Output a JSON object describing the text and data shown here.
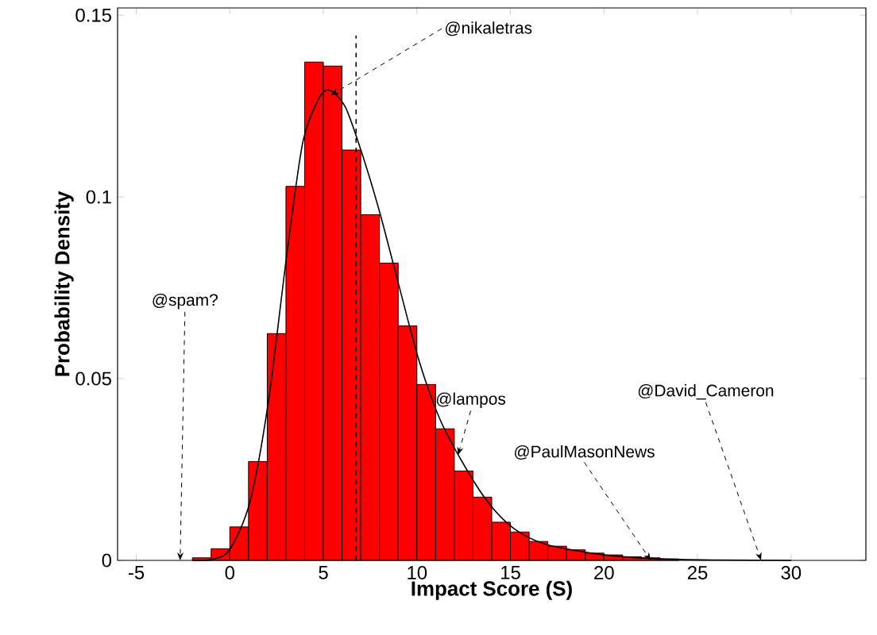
{
  "chart_data": {
    "type": "histogram",
    "xlabel": "Impact Score (S)",
    "ylabel": "Probability Density",
    "color": "#ff0000",
    "bins": [
      -2,
      -1,
      0,
      1,
      2,
      3,
      4,
      5,
      6,
      7,
      8,
      9,
      10,
      11,
      12,
      13,
      14,
      15,
      16,
      17,
      18,
      19,
      20,
      21,
      22,
      23,
      24
    ],
    "values": [
      0.0007,
      0.0032,
      0.0092,
      0.0272,
      0.0624,
      0.1029,
      0.1371,
      0.136,
      0.1129,
      0.0951,
      0.0818,
      0.0645,
      0.0484,
      0.0362,
      0.0246,
      0.0174,
      0.0105,
      0.0078,
      0.0052,
      0.0039,
      0.0029,
      0.002,
      0.0015,
      0.001,
      0.0007,
      0.0004
    ],
    "series": [
      {
        "type": "line",
        "color": "#000000",
        "x": [
          -2,
          -0.9,
          0,
          1.07,
          2.06,
          3.05,
          3.9,
          4.75,
          5.3,
          6.15,
          7.0,
          8.0,
          8.97,
          10.1,
          11.2,
          12.4,
          13.8,
          15.2,
          16.9,
          20,
          23,
          26,
          30
        ],
        "values": [
          0,
          0.0003,
          0.003,
          0.016,
          0.0436,
          0.0843,
          0.115,
          0.127,
          0.1294,
          0.125,
          0.113,
          0.096,
          0.077,
          0.0552,
          0.0392,
          0.0273,
          0.016,
          0.0087,
          0.0044,
          0.0015,
          0.0004,
          0.0001,
          0
        ]
      }
    ],
    "ref_lines": [
      {
        "axis": "x",
        "value": 6.75,
        "line_style": "dashed",
        "color": "#000000"
      }
    ],
    "annotations": [
      {
        "text": "@nikaletras",
        "x": 5.4,
        "y": 0.128
      },
      "@spam?",
      {
        "text": "@lampos",
        "x": 12.2,
        "y": 0.029
      },
      {
        "text": "@PaulMasonNews",
        "x": 22.5,
        "y": 0
      },
      {
        "text": "@David_Cameron",
        "x": 28.4,
        "y": 0
      }
    ],
    "xlim": [
      -6,
      34
    ],
    "ylim": [
      0,
      0.152
    ],
    "xticks": [
      -5,
      0,
      5,
      10,
      15,
      20,
      25,
      30
    ],
    "yticks": [
      0,
      0.05,
      0.1,
      0.15
    ],
    "grid": false
  }
}
